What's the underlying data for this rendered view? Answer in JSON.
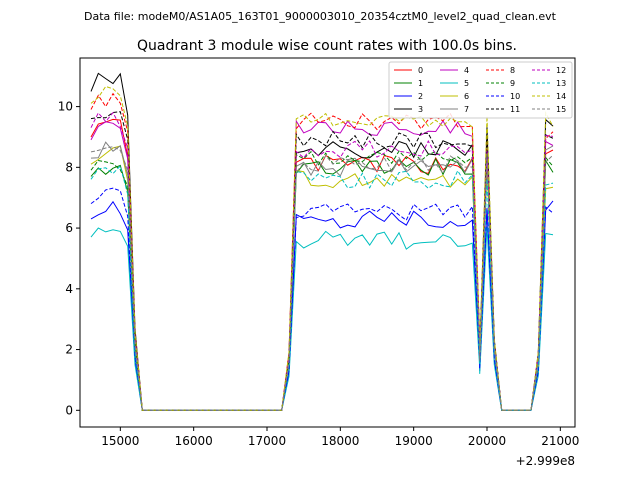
{
  "suptitle": "Data file: modeM0/AS1A05_163T01_9000003010_20354cztM0_level2_quad_clean.evt",
  "chart_data": {
    "type": "line",
    "title": "Quadrant 3 module wise count rates with 100.0s bins.",
    "xlabel": "",
    "ylabel": "",
    "x_offset_label": "+2.999e8",
    "xlim": [
      14450,
      21200
    ],
    "ylim": [
      -0.55,
      11.6
    ],
    "x_ticks": [
      15000,
      16000,
      17000,
      18000,
      19000,
      20000,
      21000
    ],
    "x_tick_labels": [
      "15000",
      "16000",
      "17000",
      "18000",
      "19000",
      "20000",
      "21000"
    ],
    "y_ticks": [
      0,
      2,
      4,
      6,
      8,
      10
    ],
    "y_tick_labels": [
      "0",
      "2",
      "4",
      "6",
      "8",
      "10"
    ],
    "legend_position": "top-right",
    "series": [
      {
        "name": "0",
        "color": "#ff0000",
        "dash": "solid"
      },
      {
        "name": "1",
        "color": "#008000",
        "dash": "solid"
      },
      {
        "name": "2",
        "color": "#0000ff",
        "dash": "solid"
      },
      {
        "name": "3",
        "color": "#000000",
        "dash": "solid"
      },
      {
        "name": "4",
        "color": "#bf00bf",
        "dash": "solid"
      },
      {
        "name": "5",
        "color": "#00bfbf",
        "dash": "solid"
      },
      {
        "name": "6",
        "color": "#bfbf00",
        "dash": "solid"
      },
      {
        "name": "7",
        "color": "#808080",
        "dash": "solid"
      },
      {
        "name": "8",
        "color": "#ff0000",
        "dash": "dashed"
      },
      {
        "name": "9",
        "color": "#008000",
        "dash": "dashed"
      },
      {
        "name": "10",
        "color": "#0000ff",
        "dash": "dashed"
      },
      {
        "name": "11",
        "color": "#000000",
        "dash": "dashed"
      },
      {
        "name": "12",
        "color": "#bf00bf",
        "dash": "dashed"
      },
      {
        "name": "13",
        "color": "#00bfbf",
        "dash": "dashed"
      },
      {
        "name": "14",
        "color": "#bfbf00",
        "dash": "dashed"
      },
      {
        "name": "15",
        "color": "#808080",
        "dash": "dashed"
      }
    ],
    "segments": [
      {
        "x_start": 14600,
        "x_end": 15100,
        "levels": [
          9.3,
          8.0,
          6.6,
          10.8,
          9.2,
          6.0,
          8.4,
          8.6,
          10.2,
          8.2,
          7.1,
          9.9,
          9.6,
          7.9,
          10.4,
          8.8
        ]
      },
      {
        "x_start": 17400,
        "x_end": 19800,
        "levels": [
          8.1,
          8.0,
          6.3,
          8.6,
          9.3,
          5.6,
          7.6,
          8.0,
          9.5,
          8.3,
          6.5,
          8.9,
          8.6,
          7.6,
          9.6,
          8.1
        ]
      },
      {
        "x_start": 20000,
        "x_end": 20000,
        "levels": [
          8.0,
          8.3,
          6.5,
          9.2,
          8.2,
          6.0,
          8.0,
          8.4,
          9.0,
          8.6,
          6.8,
          9.2,
          8.8,
          7.9,
          9.4,
          8.2
        ]
      },
      {
        "x_start": 20800,
        "x_end": 20900,
        "levels": [
          8.5,
          8.0,
          6.7,
          9.4,
          9.0,
          5.7,
          7.5,
          8.5,
          9.2,
          8.3,
          6.4,
          9.1,
          8.8,
          7.5,
          9.6,
          8.3
        ]
      }
    ]
  }
}
